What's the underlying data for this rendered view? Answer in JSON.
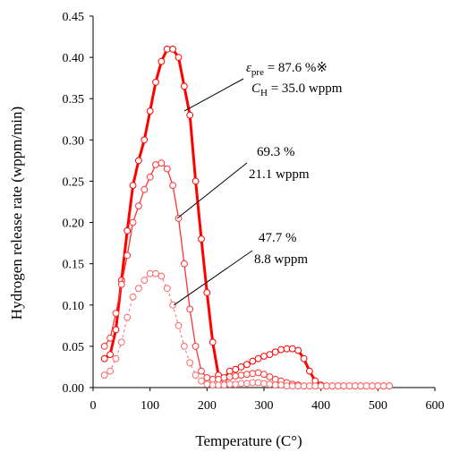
{
  "chart_data": {
    "type": "line",
    "xlabel": "Temperature (C°)",
    "ylabel": "Hydrogen release rate (wppm/min)",
    "xlim": [
      0,
      600
    ],
    "ylim": [
      0,
      0.45
    ],
    "x_ticks": [
      "0",
      "100",
      "200",
      "300",
      "400",
      "500",
      "600"
    ],
    "y_ticks": [
      "0.00",
      "0.05",
      "0.10",
      "0.15",
      "0.20",
      "0.25",
      "0.30",
      "0.35",
      "0.40",
      "0.45"
    ],
    "grid": false,
    "series": [
      {
        "color": "#ff0000",
        "line": "thick-solid",
        "annotation": {
          "eps_symbol": "ε",
          "eps_sub": "pre",
          "eps_value": " = 87.6 %※",
          "c_symbol": "C",
          "c_sub": "H",
          "c_value": " = 35.0 wppm"
        },
        "points": [
          [
            20,
            0.035
          ],
          [
            30,
            0.04
          ],
          [
            40,
            0.07
          ],
          [
            50,
            0.13
          ],
          [
            60,
            0.19
          ],
          [
            70,
            0.245
          ],
          [
            80,
            0.275
          ],
          [
            90,
            0.3
          ],
          [
            100,
            0.335
          ],
          [
            110,
            0.37
          ],
          [
            120,
            0.395
          ],
          [
            130,
            0.41
          ],
          [
            140,
            0.41
          ],
          [
            150,
            0.4
          ],
          [
            160,
            0.365
          ],
          [
            170,
            0.33
          ],
          [
            180,
            0.25
          ],
          [
            190,
            0.18
          ],
          [
            200,
            0.115
          ],
          [
            210,
            0.055
          ],
          [
            220,
            0.015
          ],
          [
            230,
            0.01
          ],
          [
            240,
            0.02
          ],
          [
            250,
            0.022
          ],
          [
            260,
            0.025
          ],
          [
            270,
            0.028
          ],
          [
            280,
            0.032
          ],
          [
            290,
            0.035
          ],
          [
            300,
            0.038
          ],
          [
            310,
            0.04
          ],
          [
            320,
            0.043
          ],
          [
            330,
            0.046
          ],
          [
            340,
            0.047
          ],
          [
            350,
            0.047
          ],
          [
            360,
            0.045
          ],
          [
            370,
            0.035
          ],
          [
            380,
            0.02
          ],
          [
            390,
            0.008
          ],
          [
            400,
            0.003
          ],
          [
            410,
            0.002
          ],
          [
            420,
            0.002
          ],
          [
            430,
            0.002
          ],
          [
            440,
            0.002
          ],
          [
            450,
            0.002
          ],
          [
            460,
            0.002
          ],
          [
            470,
            0.002
          ],
          [
            480,
            0.002
          ],
          [
            490,
            0.002
          ],
          [
            500,
            0.002
          ],
          [
            510,
            0.002
          ],
          [
            520,
            0.002
          ]
        ]
      },
      {
        "color": "#ff3333",
        "line": "thin-solid",
        "annotation": {
          "line1": "69.3 %",
          "line2": "21.1 wppm"
        },
        "points": [
          [
            20,
            0.05
          ],
          [
            30,
            0.06
          ],
          [
            40,
            0.09
          ],
          [
            50,
            0.125
          ],
          [
            60,
            0.16
          ],
          [
            70,
            0.2
          ],
          [
            80,
            0.22
          ],
          [
            90,
            0.24
          ],
          [
            100,
            0.255
          ],
          [
            110,
            0.27
          ],
          [
            120,
            0.272
          ],
          [
            130,
            0.265
          ],
          [
            140,
            0.245
          ],
          [
            150,
            0.205
          ],
          [
            160,
            0.15
          ],
          [
            170,
            0.095
          ],
          [
            180,
            0.05
          ],
          [
            190,
            0.02
          ],
          [
            200,
            0.012
          ],
          [
            210,
            0.01
          ],
          [
            220,
            0.01
          ],
          [
            230,
            0.012
          ],
          [
            240,
            0.013
          ],
          [
            250,
            0.014
          ],
          [
            260,
            0.015
          ],
          [
            270,
            0.016
          ],
          [
            280,
            0.017
          ],
          [
            290,
            0.018
          ],
          [
            300,
            0.016
          ],
          [
            310,
            0.013
          ],
          [
            320,
            0.01
          ],
          [
            330,
            0.008
          ],
          [
            340,
            0.006
          ],
          [
            350,
            0.004
          ],
          [
            360,
            0.003
          ],
          [
            370,
            0.002
          ],
          [
            380,
            0.002
          ],
          [
            390,
            0.002
          ],
          [
            400,
            0.002
          ],
          [
            410,
            0.002
          ],
          [
            420,
            0.002
          ],
          [
            430,
            0.002
          ],
          [
            440,
            0.002
          ],
          [
            450,
            0.002
          ],
          [
            460,
            0.002
          ],
          [
            470,
            0.002
          ],
          [
            480,
            0.002
          ],
          [
            490,
            0.002
          ],
          [
            500,
            0.002
          ],
          [
            510,
            0.002
          ],
          [
            520,
            0.002
          ]
        ]
      },
      {
        "color": "#ff6666",
        "line": "dashed",
        "annotation": {
          "line1": "47.7 %",
          "line2": "8.8 wppm"
        },
        "points": [
          [
            20,
            0.015
          ],
          [
            30,
            0.02
          ],
          [
            40,
            0.035
          ],
          [
            50,
            0.055
          ],
          [
            60,
            0.085
          ],
          [
            70,
            0.11
          ],
          [
            80,
            0.12
          ],
          [
            90,
            0.13
          ],
          [
            100,
            0.138
          ],
          [
            110,
            0.138
          ],
          [
            120,
            0.135
          ],
          [
            130,
            0.12
          ],
          [
            140,
            0.1
          ],
          [
            150,
            0.075
          ],
          [
            160,
            0.05
          ],
          [
            170,
            0.03
          ],
          [
            180,
            0.015
          ],
          [
            190,
            0.008
          ],
          [
            200,
            0.004
          ],
          [
            210,
            0.003
          ],
          [
            220,
            0.003
          ],
          [
            230,
            0.003
          ],
          [
            240,
            0.004
          ],
          [
            250,
            0.004
          ],
          [
            260,
            0.005
          ],
          [
            270,
            0.005
          ],
          [
            280,
            0.006
          ],
          [
            290,
            0.006
          ],
          [
            300,
            0.005
          ],
          [
            310,
            0.004
          ],
          [
            320,
            0.003
          ],
          [
            330,
            0.003
          ],
          [
            340,
            0.002
          ],
          [
            350,
            0.002
          ],
          [
            360,
            0.002
          ],
          [
            370,
            0.002
          ],
          [
            380,
            0.002
          ],
          [
            390,
            0.002
          ],
          [
            400,
            0.002
          ],
          [
            410,
            0.002
          ],
          [
            420,
            0.002
          ],
          [
            430,
            0.002
          ],
          [
            440,
            0.002
          ],
          [
            450,
            0.002
          ],
          [
            460,
            0.002
          ],
          [
            470,
            0.002
          ],
          [
            480,
            0.002
          ],
          [
            490,
            0.002
          ],
          [
            500,
            0.002
          ],
          [
            510,
            0.002
          ],
          [
            520,
            0.002
          ]
        ]
      }
    ]
  }
}
